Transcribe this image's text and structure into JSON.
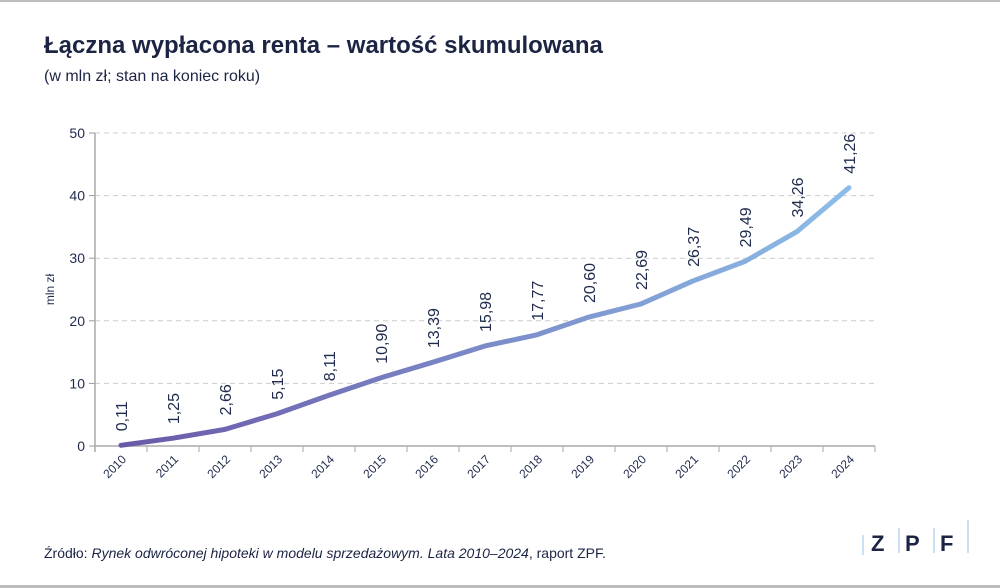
{
  "header": {
    "title": "Łączna wypłacona renta – wartość skumulowana",
    "subtitle": "(w mln zł; stan na koniec roku)"
  },
  "source": {
    "prefix": "Źródło: ",
    "title": "Rynek odwróconej hipoteki w modelu sprzedażowym. Lata 2010–2024",
    "suffix": ", raport ZPF."
  },
  "logo": {
    "letters": [
      "Z",
      "P",
      "F"
    ]
  },
  "colors": {
    "line_start": "#6a58a8",
    "line_end": "#8cbde8",
    "text": "#1f2a4d",
    "grid": "#cccccc"
  },
  "chart_data": {
    "type": "line",
    "title": "Łączna wypłacona renta – wartość skumulowana",
    "xlabel": "",
    "ylabel": "mln zł",
    "ylim": [
      0,
      50
    ],
    "yticks": [
      0,
      10,
      20,
      30,
      40,
      50
    ],
    "grid": true,
    "categories": [
      "2010",
      "2011",
      "2012",
      "2013",
      "2014",
      "2015",
      "2016",
      "2017",
      "2018",
      "2019",
      "2020",
      "2021",
      "2022",
      "2023",
      "2024"
    ],
    "values": [
      0.11,
      1.25,
      2.66,
      5.15,
      8.11,
      10.9,
      13.39,
      15.98,
      17.77,
      20.6,
      22.69,
      26.37,
      29.49,
      34.26,
      41.26
    ],
    "labels": [
      "0,11",
      "1,25",
      "2,66",
      "5,15",
      "8,11",
      "10,90",
      "13,39",
      "15,98",
      "17,77",
      "20,60",
      "22,69",
      "26,37",
      "29,49",
      "34,26",
      "41,26"
    ]
  }
}
